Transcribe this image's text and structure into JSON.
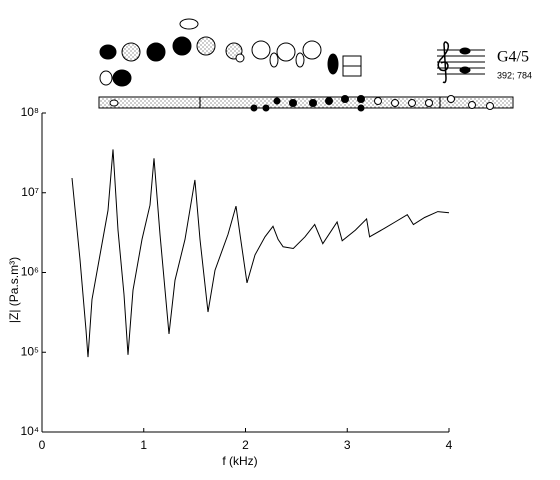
{
  "chart_data": {
    "type": "line",
    "xlabel": "f (kHz)",
    "ylabel": "|Z| (Pa.s.m³)",
    "note": "G4/5",
    "frequencies": "392; 784",
    "log_y": true,
    "color": "#000000",
    "xlim": [
      0,
      4
    ],
    "xticks": [
      0,
      1,
      2,
      3,
      4
    ],
    "ylim": [
      10000,
      100000000
    ],
    "yticks": [
      {
        "value": 10000,
        "label": "10⁴"
      },
      {
        "value": 100000,
        "label": "10⁵"
      },
      {
        "value": 1000000,
        "label": "10⁶"
      },
      {
        "value": 10000000,
        "label": "10⁷"
      },
      {
        "value": 100000000,
        "label": "10⁸"
      }
    ],
    "x": [
      0.295,
      0.373,
      0.432,
      0.452,
      0.491,
      0.57,
      0.649,
      0.698,
      0.747,
      0.806,
      0.845,
      0.894,
      0.983,
      1.061,
      1.101,
      1.16,
      1.248,
      1.307,
      1.405,
      1.503,
      1.553,
      1.631,
      1.7,
      1.828,
      1.907,
      1.946,
      2.015,
      2.093,
      2.192,
      2.27,
      2.32,
      2.37,
      2.47,
      2.585,
      2.68,
      2.76,
      2.9,
      2.95,
      3.08,
      3.19,
      3.22,
      3.37,
      3.47,
      3.59,
      3.65,
      3.76,
      3.89,
      4.0
    ],
    "values": [
      15300000,
      1450000,
      190000,
      87000,
      460000,
      1660000,
      6000000,
      35000000,
      3400000,
      530000,
      93000,
      600000,
      2600000,
      7000000,
      27000000,
      3000000,
      170000,
      800000,
      2600000,
      14500000,
      2600000,
      320000,
      1070000,
      3000000,
      6800000,
      3000000,
      740000,
      1660000,
      2800000,
      3800000,
      2600000,
      2100000,
      2000000,
      2800000,
      4000000,
      2300000,
      4300000,
      2500000,
      3400000,
      4700000,
      2800000,
      3600000,
      4300000,
      5300000,
      4000000,
      4900000,
      5800000,
      5600000
    ]
  }
}
